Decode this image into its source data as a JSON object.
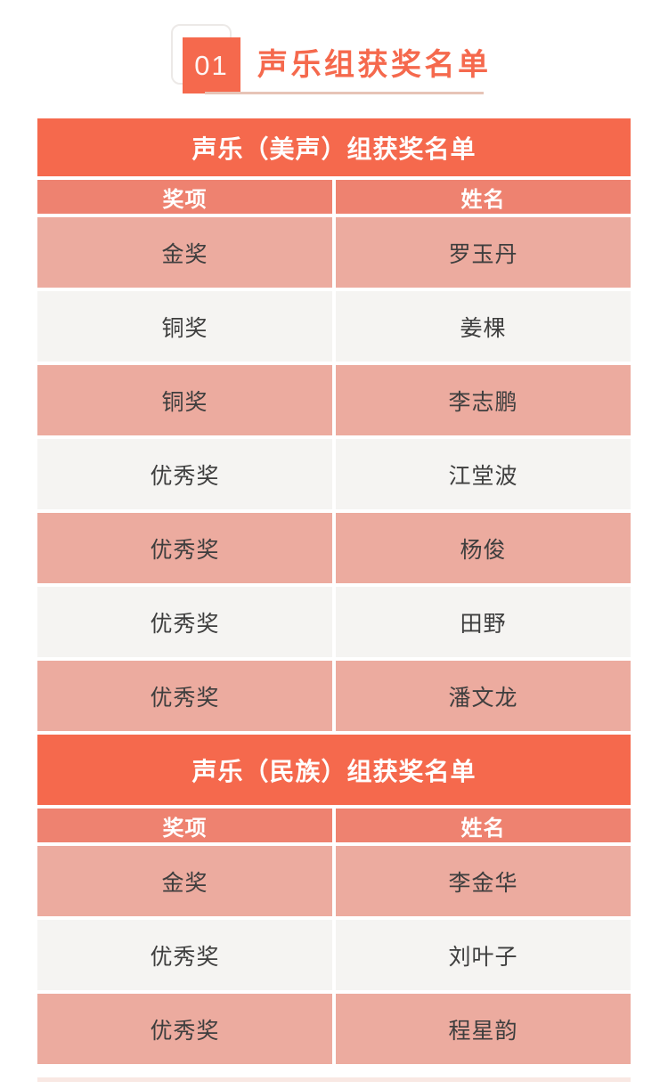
{
  "header": {
    "badge": "01",
    "title": "声乐组获奖名单"
  },
  "colors": {
    "accent": "#F5694D",
    "column_header": "#EE8270",
    "row_pink": "#ECAB9F",
    "row_light": "#F5F4F2",
    "underline": "#E7C4B7",
    "row_text": "#3E3E3E"
  },
  "sections": [
    {
      "title": "声乐（美声）组获奖名单",
      "columns": [
        "奖项",
        "姓名"
      ],
      "rows": [
        {
          "award": "金奖",
          "name": "罗玉丹"
        },
        {
          "award": "铜奖",
          "name": "姜棵"
        },
        {
          "award": "铜奖",
          "name": "李志鹏"
        },
        {
          "award": "优秀奖",
          "name": "江堂波"
        },
        {
          "award": "优秀奖",
          "name": "杨俊"
        },
        {
          "award": "优秀奖",
          "name": "田野"
        },
        {
          "award": "优秀奖",
          "name": "潘文龙"
        }
      ]
    },
    {
      "title": "声乐（民族）组获奖名单",
      "columns": [
        "奖项",
        "姓名"
      ],
      "rows": [
        {
          "award": "金奖",
          "name": "李金华"
        },
        {
          "award": "优秀奖",
          "name": "刘叶子"
        },
        {
          "award": "优秀奖",
          "name": "程星韵"
        }
      ]
    }
  ]
}
